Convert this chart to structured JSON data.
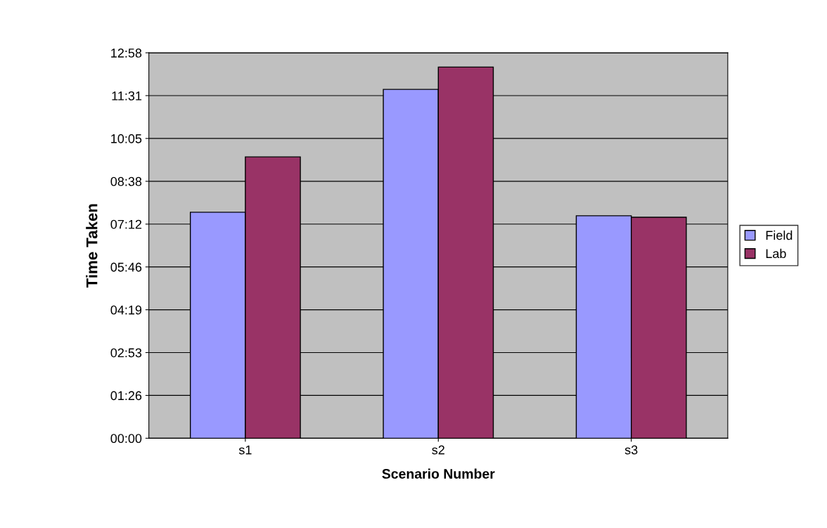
{
  "chart_data": {
    "type": "bar",
    "xlabel": "Scenario Number",
    "ylabel": "Time Taken",
    "categories": [
      "s1",
      "s2",
      "s3"
    ],
    "series": [
      {
        "name": "Field",
        "color": "#9999ff",
        "values": [
          7.6,
          11.73,
          7.48
        ]
      },
      {
        "name": "Lab",
        "color": "#993366",
        "values": [
          9.46,
          12.48,
          7.43
        ]
      }
    ],
    "ylim": [
      0,
      12.96
    ],
    "yticks": [
      {
        "value": 0,
        "label": "00:00"
      },
      {
        "value": 1.44,
        "label": "01:26"
      },
      {
        "value": 2.88,
        "label": "02:53"
      },
      {
        "value": 4.32,
        "label": "04:19"
      },
      {
        "value": 5.76,
        "label": "05:46"
      },
      {
        "value": 7.2,
        "label": "07:12"
      },
      {
        "value": 8.64,
        "label": "08:38"
      },
      {
        "value": 10.08,
        "label": "10:05"
      },
      {
        "value": 11.52,
        "label": "11:31"
      },
      {
        "value": 12.96,
        "label": "12:58"
      }
    ],
    "grid": "y",
    "legend": "right"
  }
}
